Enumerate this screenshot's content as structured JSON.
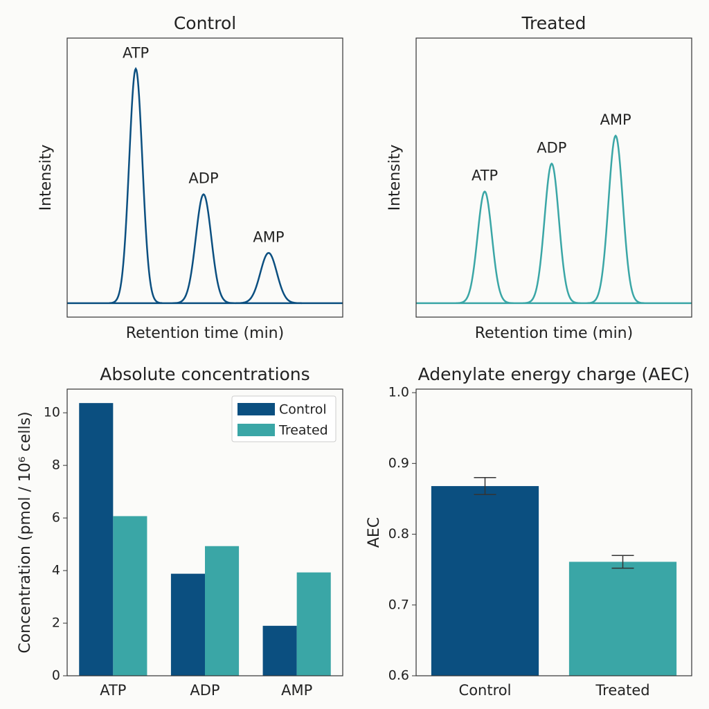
{
  "chart_data": [
    {
      "type": "chromatogram",
      "title": "Control",
      "xlabel": "Retention time (min)",
      "ylabel": "Intensity",
      "xlim": [
        0,
        10
      ],
      "ylim": [
        0,
        1
      ],
      "baseline": 0.05,
      "color": "#0b4f80",
      "peaks": [
        {
          "label": "ATP",
          "x": 2.49,
          "height": 0.84,
          "width": 0.24
        },
        {
          "label": "ADP",
          "x": 4.95,
          "height": 0.39,
          "width": 0.28
        },
        {
          "label": "AMP",
          "x": 7.31,
          "height": 0.18,
          "width": 0.3
        }
      ]
    },
    {
      "type": "chromatogram",
      "title": "Treated",
      "xlabel": "Retention time (min)",
      "ylabel": "Intensity",
      "xlim": [
        0,
        10
      ],
      "ylim": [
        0,
        1
      ],
      "baseline": 0.05,
      "color": "#3aa6a6",
      "peaks": [
        {
          "label": "ATP",
          "x": 2.49,
          "height": 0.4,
          "width": 0.26
        },
        {
          "label": "ADP",
          "x": 4.92,
          "height": 0.5,
          "width": 0.26
        },
        {
          "label": "AMP",
          "x": 7.24,
          "height": 0.6,
          "width": 0.26
        }
      ]
    },
    {
      "type": "bar",
      "title": "Absolute concentrations",
      "ylabel": "Concentration (pmol / 10⁶ cells)",
      "categories": [
        "ATP",
        "ADP",
        "AMP"
      ],
      "series": [
        {
          "name": "Control",
          "color": "#0b4f80",
          "values": [
            10.37,
            3.88,
            1.9
          ]
        },
        {
          "name": "Treated",
          "color": "#3aa6a6",
          "values": [
            6.07,
            4.93,
            3.93
          ]
        }
      ],
      "ylim": [
        0,
        10.9
      ],
      "yticks": [
        0,
        2,
        4,
        6,
        8,
        10
      ],
      "legend": "upper-right"
    },
    {
      "type": "bar",
      "title": "Adenylate energy charge (AEC)",
      "ylabel": "AEC",
      "categories": [
        "Control",
        "Treated"
      ],
      "values": [
        0.868,
        0.761
      ],
      "errors": [
        0.012,
        0.009
      ],
      "colors": [
        "#0b4f80",
        "#3aa6a6"
      ],
      "ylim": [
        0.6,
        1.005
      ],
      "yticks": [
        0.6,
        0.7,
        0.8,
        0.9,
        {
          "value": 1,
          "label": "1.0"
        }
      ]
    }
  ]
}
